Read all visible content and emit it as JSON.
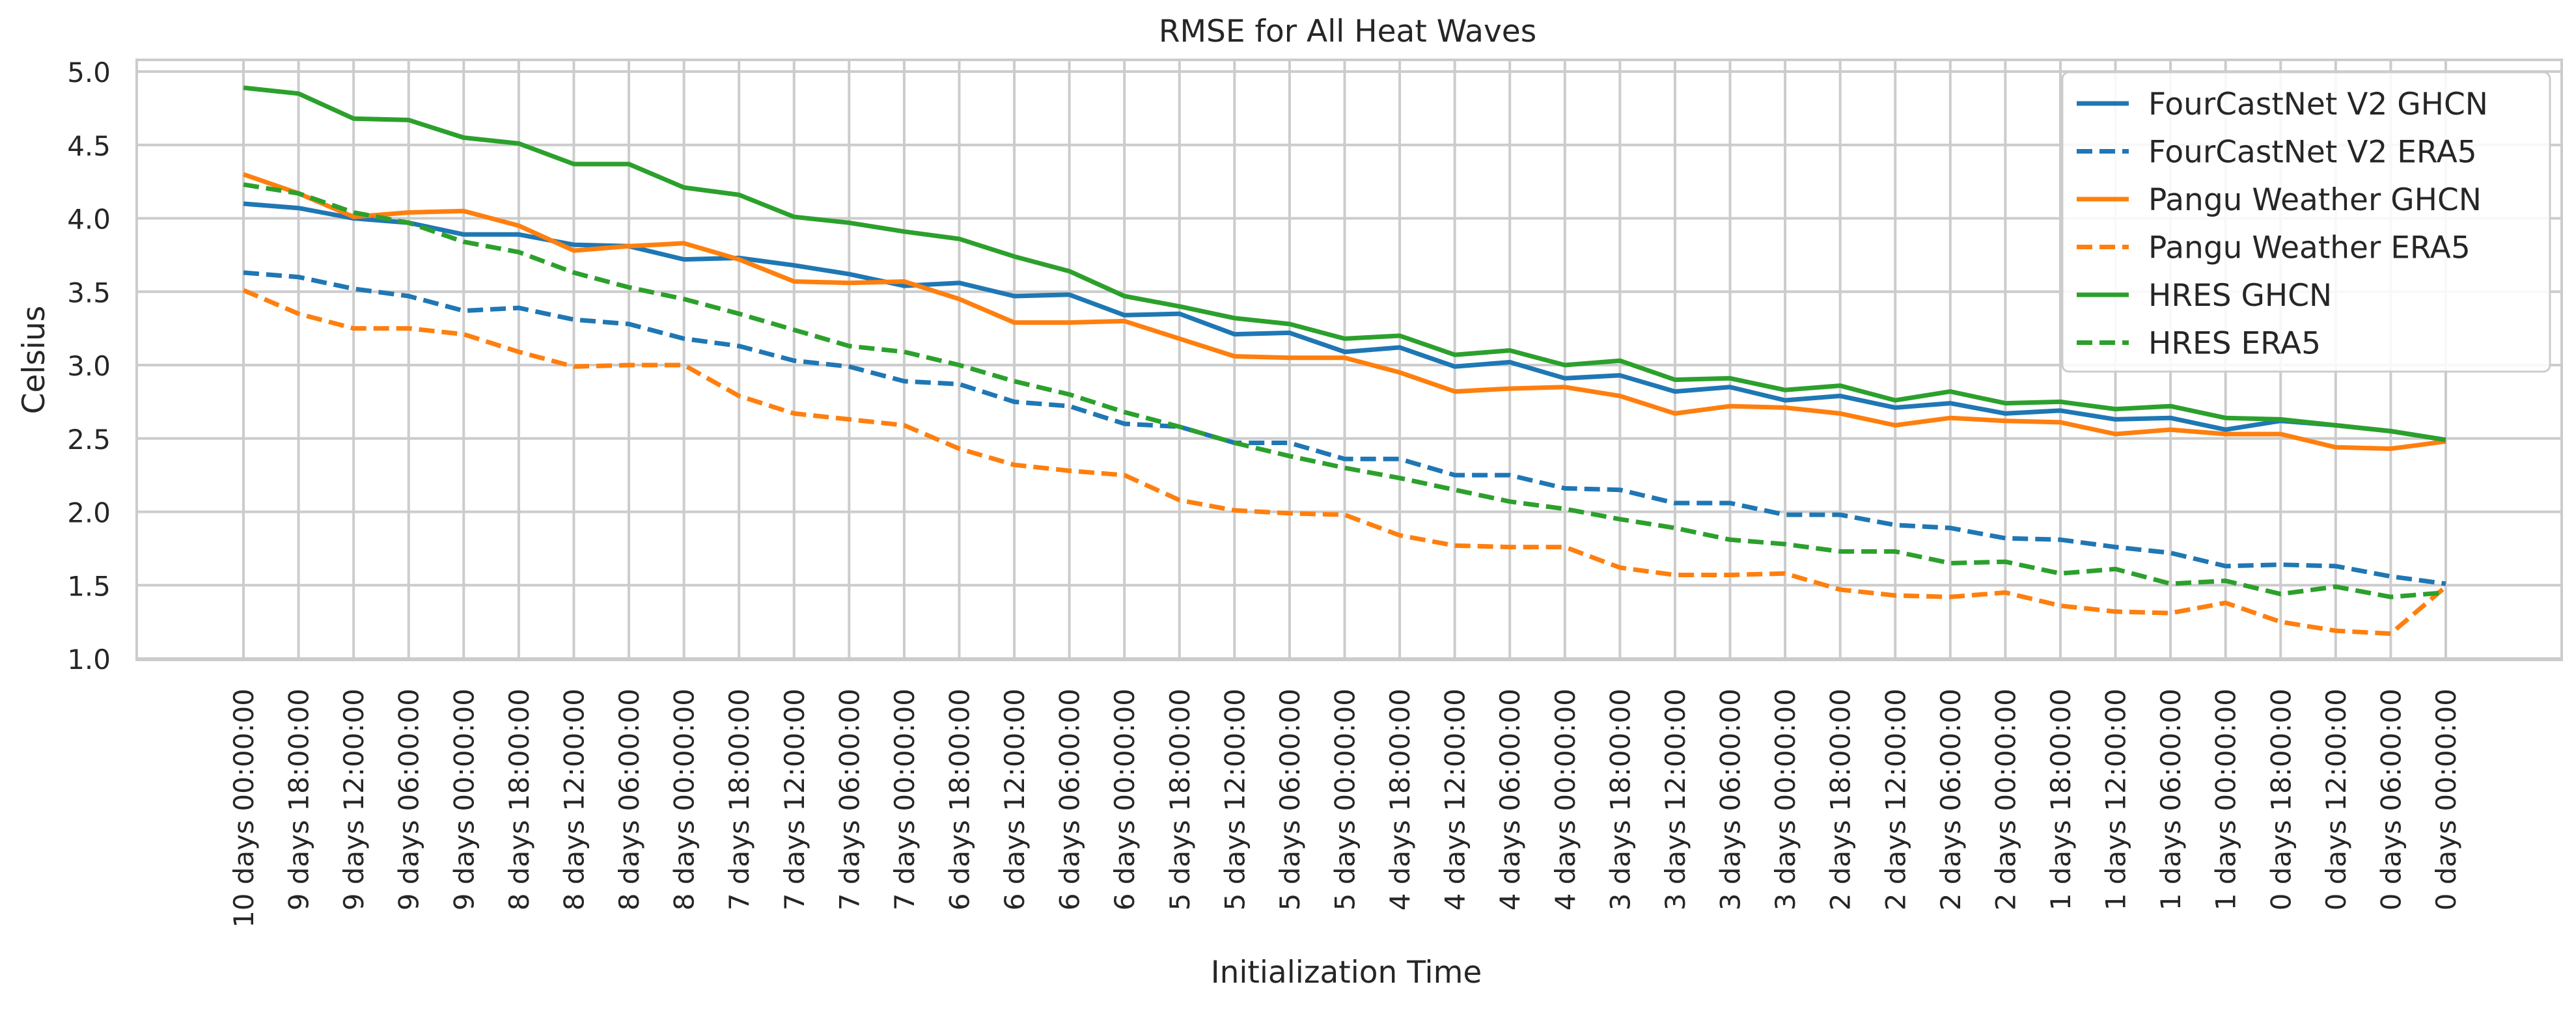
{
  "chart_data": {
    "type": "line",
    "title": "RMSE for All Heat Waves",
    "xlabel": "Initialization Time",
    "ylabel": "Celsius",
    "ylim": [
      1.0,
      5.0
    ],
    "yticks": [
      "1.0",
      "1.5",
      "2.0",
      "2.5",
      "3.0",
      "3.5",
      "4.0",
      "4.5",
      "5.0"
    ],
    "grid": true,
    "legend_position": "top-right",
    "categories": [
      "10 days 00:00:00",
      "9 days 18:00:00",
      "9 days 12:00:00",
      "9 days 06:00:00",
      "9 days 00:00:00",
      "8 days 18:00:00",
      "8 days 12:00:00",
      "8 days 06:00:00",
      "8 days 00:00:00",
      "7 days 18:00:00",
      "7 days 12:00:00",
      "7 days 06:00:00",
      "7 days 00:00:00",
      "6 days 18:00:00",
      "6 days 12:00:00",
      "6 days 06:00:00",
      "6 days 00:00:00",
      "5 days 18:00:00",
      "5 days 12:00:00",
      "5 days 06:00:00",
      "5 days 00:00:00",
      "4 days 18:00:00",
      "4 days 12:00:00",
      "4 days 06:00:00",
      "4 days 00:00:00",
      "3 days 18:00:00",
      "3 days 12:00:00",
      "3 days 06:00:00",
      "3 days 00:00:00",
      "2 days 18:00:00",
      "2 days 12:00:00",
      "2 days 06:00:00",
      "2 days 00:00:00",
      "1 days 18:00:00",
      "1 days 12:00:00",
      "1 days 06:00:00",
      "1 days 00:00:00",
      "0 days 18:00:00",
      "0 days 12:00:00",
      "0 days 06:00:00",
      "0 days 00:00:00"
    ],
    "series": [
      {
        "name": "FourCastNet V2 GHCN",
        "color": "#1f77b4",
        "dash": false,
        "values": [
          4.1,
          4.07,
          4.0,
          3.97,
          3.89,
          3.89,
          3.82,
          3.81,
          3.72,
          3.73,
          3.68,
          3.62,
          3.54,
          3.56,
          3.47,
          3.48,
          3.34,
          3.35,
          3.21,
          3.22,
          3.09,
          3.12,
          2.99,
          3.02,
          2.91,
          2.93,
          2.82,
          2.85,
          2.76,
          2.79,
          2.71,
          2.74,
          2.67,
          2.69,
          2.63,
          2.64,
          2.56,
          2.62,
          2.59,
          2.55,
          2.49
        ]
      },
      {
        "name": "FourCastNet V2 ERA5",
        "color": "#1f77b4",
        "dash": true,
        "values": [
          3.63,
          3.6,
          3.52,
          3.47,
          3.37,
          3.39,
          3.31,
          3.28,
          3.18,
          3.13,
          3.03,
          2.99,
          2.89,
          2.87,
          2.75,
          2.72,
          2.6,
          2.58,
          2.47,
          2.47,
          2.36,
          2.36,
          2.25,
          2.25,
          2.16,
          2.15,
          2.06,
          2.06,
          1.98,
          1.98,
          1.91,
          1.89,
          1.82,
          1.81,
          1.76,
          1.72,
          1.63,
          1.64,
          1.63,
          1.56,
          1.51
        ]
      },
      {
        "name": "Pangu Weather GHCN",
        "color": "#ff7f0e",
        "dash": false,
        "values": [
          4.3,
          4.17,
          4.01,
          4.04,
          4.05,
          3.95,
          3.78,
          3.81,
          3.83,
          3.72,
          3.57,
          3.56,
          3.57,
          3.45,
          3.29,
          3.29,
          3.3,
          3.18,
          3.06,
          3.05,
          3.05,
          2.95,
          2.82,
          2.84,
          2.85,
          2.79,
          2.67,
          2.72,
          2.71,
          2.67,
          2.59,
          2.64,
          2.62,
          2.61,
          2.53,
          2.56,
          2.53,
          2.53,
          2.44,
          2.43,
          2.48
        ]
      },
      {
        "name": "Pangu Weather ERA5",
        "color": "#ff7f0e",
        "dash": true,
        "values": [
          3.51,
          3.35,
          3.25,
          3.25,
          3.21,
          3.09,
          2.99,
          3.0,
          3.0,
          2.79,
          2.67,
          2.63,
          2.59,
          2.43,
          2.32,
          2.28,
          2.25,
          2.08,
          2.01,
          1.99,
          1.98,
          1.84,
          1.77,
          1.76,
          1.76,
          1.62,
          1.57,
          1.57,
          1.58,
          1.47,
          1.43,
          1.42,
          1.45,
          1.36,
          1.32,
          1.31,
          1.38,
          1.25,
          1.19,
          1.17,
          1.49
        ]
      },
      {
        "name": "HRES GHCN",
        "color": "#2ca02c",
        "dash": false,
        "values": [
          4.89,
          4.85,
          4.68,
          4.67,
          4.55,
          4.51,
          4.37,
          4.37,
          4.21,
          4.16,
          4.01,
          3.97,
          3.91,
          3.86,
          3.74,
          3.64,
          3.47,
          3.4,
          3.32,
          3.28,
          3.18,
          3.2,
          3.07,
          3.1,
          3.0,
          3.03,
          2.9,
          2.91,
          2.83,
          2.86,
          2.76,
          2.82,
          2.74,
          2.75,
          2.7,
          2.72,
          2.64,
          2.63,
          2.59,
          2.55,
          2.49
        ]
      },
      {
        "name": "HRES ERA5",
        "color": "#2ca02c",
        "dash": true,
        "values": [
          4.23,
          4.17,
          4.04,
          3.97,
          3.84,
          3.77,
          3.63,
          3.53,
          3.45,
          3.35,
          3.24,
          3.13,
          3.09,
          3.0,
          2.89,
          2.8,
          2.68,
          2.58,
          2.47,
          2.38,
          2.3,
          2.23,
          2.15,
          2.07,
          2.02,
          1.95,
          1.89,
          1.81,
          1.78,
          1.73,
          1.73,
          1.65,
          1.66,
          1.58,
          1.61,
          1.51,
          1.53,
          1.44,
          1.49,
          1.42,
          1.45
        ]
      }
    ]
  }
}
